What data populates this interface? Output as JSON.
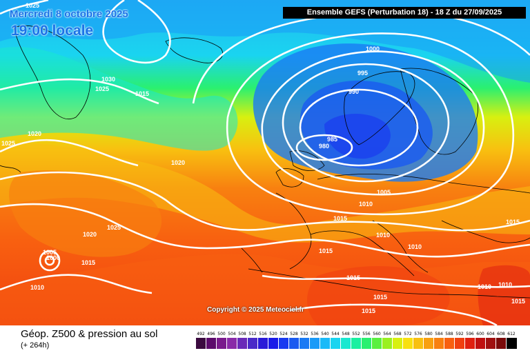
{
  "header": {
    "model": "Ensemble GEFS  (Perturbation 18)  -  18 Z du 27/09/2025",
    "date": "Mercredi 8 octobre 2025",
    "time": "19:00 locale"
  },
  "copyright": "Copyright © 2025 Meteociel.fr",
  "legend": {
    "title": "Géop. Z500 & pression au sol",
    "subtitle": "(+ 264h)",
    "values": [
      "492",
      "496",
      "500",
      "504",
      "508",
      "512",
      "516",
      "520",
      "524",
      "528",
      "532",
      "536",
      "540",
      "544",
      "548",
      "552",
      "556",
      "560",
      "564",
      "568",
      "572",
      "576",
      "580",
      "584",
      "588",
      "592",
      "596",
      "600",
      "604",
      "608",
      "612"
    ],
    "colors": [
      "#3b0a3f",
      "#5c0a6b",
      "#7a1a8c",
      "#8a2aa8",
      "#6a2ab8",
      "#4a2ac8",
      "#2a1ad8",
      "#1a1ae8",
      "#1a3af0",
      "#1a5af0",
      "#1a7af4",
      "#1a9af8",
      "#1abaf8",
      "#1ad4f0",
      "#1ae8d0",
      "#1af0a0",
      "#2af070",
      "#5af040",
      "#9af020",
      "#d8f010",
      "#f8e010",
      "#f8c010",
      "#f8a010",
      "#f88010",
      "#f86010",
      "#f04010",
      "#e02010",
      "#c01010",
      "#a01010",
      "#7a0a0a",
      "#000000"
    ]
  },
  "isobar_labels": [
    "1025",
    "1030",
    "1025",
    "1015",
    "1020",
    "1025",
    "1020",
    "1000",
    "995",
    "990",
    "985",
    "980",
    "1005",
    "1010",
    "1015",
    "1015",
    "1010",
    "1010",
    "1025",
    "1020",
    "1005",
    "1000",
    "1015",
    "1010",
    "1015",
    "1015",
    "1015",
    "1015",
    "1010",
    "1010",
    "1015",
    "1010"
  ]
}
